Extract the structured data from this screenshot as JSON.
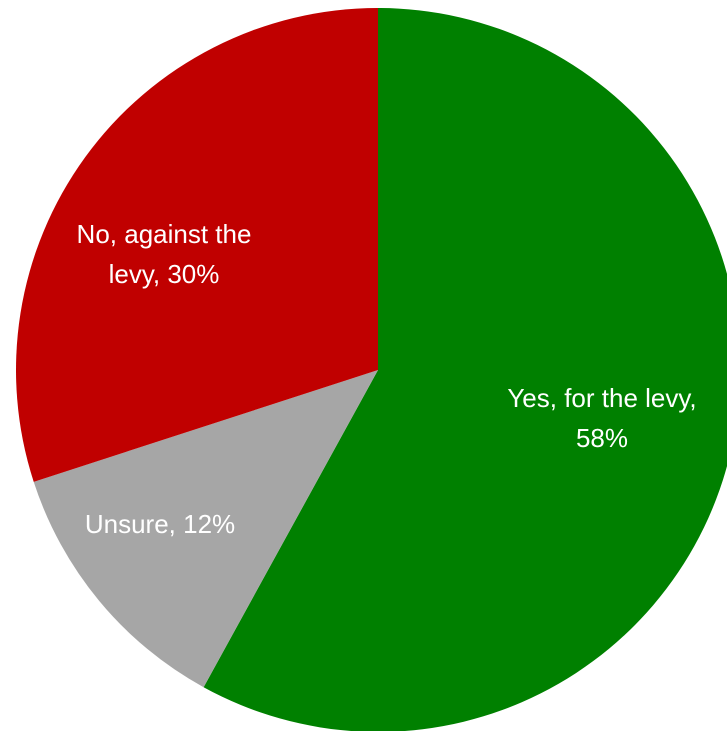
{
  "chart_data": {
    "type": "pie",
    "title": "",
    "start_angle_deg": 0,
    "direction": "clockwise",
    "legend": "none",
    "slices": [
      {
        "name": "Yes, for the levy",
        "value": 58,
        "label_lines": [
          "Yes, for the levy,",
          "58%"
        ],
        "color": "#008000"
      },
      {
        "name": "Unsure",
        "value": 12,
        "label_lines": [
          "Unsure, 12%"
        ],
        "color": "#A6A6A6"
      },
      {
        "name": "No, against the levy",
        "value": 30,
        "label_lines": [
          "No, against the",
          "levy, 30%"
        ],
        "color": "#C00000"
      }
    ]
  }
}
